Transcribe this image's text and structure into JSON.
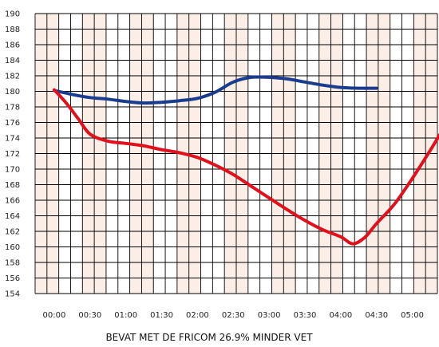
{
  "chart_data": {
    "type": "line",
    "xlabel": "BEVAT MET DE FRICOM 26.9% MINDER VET",
    "ylabel": "",
    "ylim": [
      154,
      190
    ],
    "y_ticks": [
      154,
      156,
      158,
      160,
      162,
      164,
      166,
      168,
      170,
      172,
      174,
      176,
      178,
      180,
      182,
      184,
      186,
      188,
      190
    ],
    "x_ticks": [
      "00:00",
      "00:30",
      "01:00",
      "01:30",
      "02:00",
      "02:30",
      "03:00",
      "03:30",
      "04:00",
      "04:30",
      "05:00"
    ],
    "xlim_minutes": [
      -16,
      321
    ],
    "grid": true,
    "series": [
      {
        "color": "#1a3c8f",
        "points": [
          [
            0,
            180.1
          ],
          [
            15,
            179.6
          ],
          [
            30,
            179.2
          ],
          [
            45,
            179.0
          ],
          [
            60,
            178.7
          ],
          [
            75,
            178.5
          ],
          [
            90,
            178.6
          ],
          [
            105,
            178.8
          ],
          [
            120,
            179.1
          ],
          [
            135,
            179.9
          ],
          [
            150,
            181.2
          ],
          [
            165,
            181.8
          ],
          [
            180,
            181.8
          ],
          [
            195,
            181.6
          ],
          [
            210,
            181.2
          ],
          [
            225,
            180.8
          ],
          [
            240,
            180.5
          ],
          [
            255,
            180.4
          ],
          [
            270,
            180.4
          ]
        ]
      },
      {
        "color": "#e0101c",
        "points": [
          [
            0,
            180.2
          ],
          [
            10,
            178.5
          ],
          [
            20,
            176.5
          ],
          [
            30,
            174.5
          ],
          [
            45,
            173.6
          ],
          [
            60,
            173.3
          ],
          [
            75,
            173.0
          ],
          [
            90,
            172.5
          ],
          [
            105,
            172.1
          ],
          [
            120,
            171.5
          ],
          [
            135,
            170.5
          ],
          [
            150,
            169.3
          ],
          [
            165,
            167.8
          ],
          [
            180,
            166.3
          ],
          [
            195,
            164.8
          ],
          [
            210,
            163.4
          ],
          [
            225,
            162.2
          ],
          [
            240,
            161.3
          ],
          [
            250,
            160.4
          ],
          [
            260,
            161.2
          ],
          [
            270,
            163.0
          ],
          [
            285,
            165.5
          ],
          [
            300,
            168.8
          ],
          [
            315,
            172.4
          ],
          [
            324,
            174.7
          ]
        ]
      }
    ]
  },
  "colors": {
    "band": "#faeee6",
    "grid": "#000000",
    "background": "#ffffff"
  }
}
